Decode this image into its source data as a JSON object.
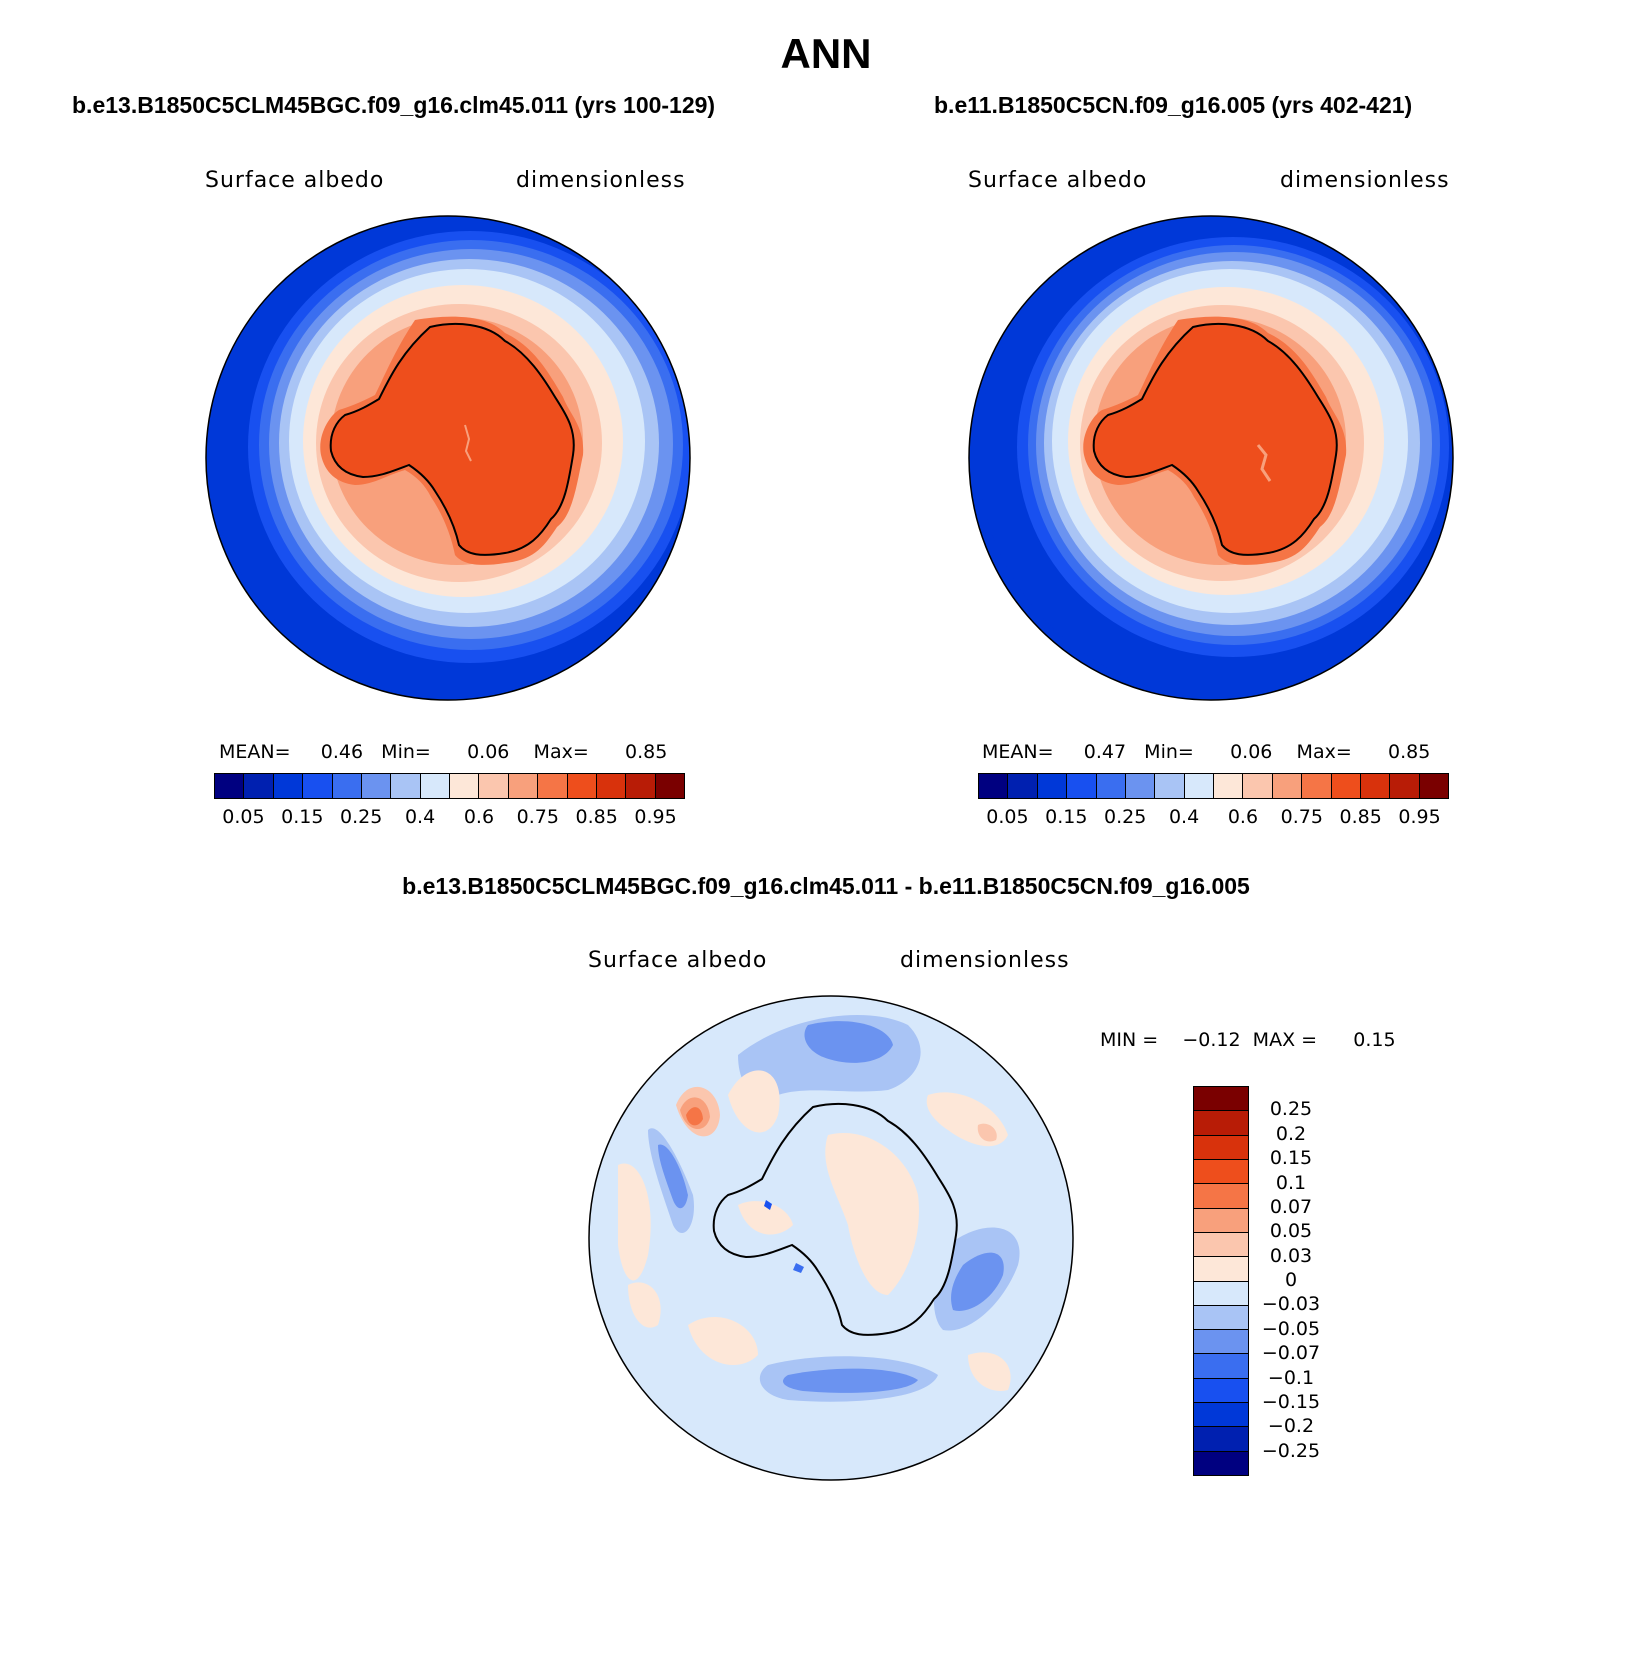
{
  "title": "ANN",
  "panels": [
    {
      "id": "left",
      "title": "b.e13.B1850C5CLM45BGC.f09_g16.clm45.011 (yrs 100-129)",
      "variable": "Surface albedo",
      "units": "dimensionless",
      "stats": {
        "mean_label": "MEAN=",
        "mean": "0.46",
        "min_label": "Min=",
        "min": "0.06",
        "max_label": "Max=",
        "max": "0.85"
      },
      "colorbar": {
        "colors": [
          "#000080",
          "#0020b0",
          "#0038d8",
          "#1850f0",
          "#3a6ef0",
          "#6b93f0",
          "#a9c4f5",
          "#d7e8fb",
          "#fde7d8",
          "#fbc6ae",
          "#f8a07c",
          "#f57546",
          "#ee4e1c",
          "#d8320c",
          "#b81c06",
          "#7a0000"
        ],
        "tick_labels": [
          "0.05",
          "0.15",
          "0.25",
          "0.4",
          "0.6",
          "0.75",
          "0.85",
          "0.95"
        ]
      }
    },
    {
      "id": "right",
      "title": "b.e11.B1850C5CN.f09_g16.005 (yrs 402-421)",
      "variable": "Surface albedo",
      "units": "dimensionless",
      "stats": {
        "mean_label": "MEAN=",
        "mean": "0.47",
        "min_label": "Min=",
        "min": "0.06",
        "max_label": "Max=",
        "max": "0.85"
      },
      "colorbar": {
        "colors": [
          "#000080",
          "#0020b0",
          "#0038d8",
          "#1850f0",
          "#3a6ef0",
          "#6b93f0",
          "#a9c4f5",
          "#d7e8fb",
          "#fde7d8",
          "#fbc6ae",
          "#f8a07c",
          "#f57546",
          "#ee4e1c",
          "#d8320c",
          "#b81c06",
          "#7a0000"
        ],
        "tick_labels": [
          "0.05",
          "0.15",
          "0.25",
          "0.4",
          "0.6",
          "0.75",
          "0.85",
          "0.95"
        ]
      }
    },
    {
      "id": "diff",
      "title": "b.e13.B1850C5CLM45BGC.f09_g16.clm45.011 - b.e11.B1850C5CN.f09_g16.005",
      "variable": "Surface albedo",
      "units": "dimensionless",
      "stats": {
        "min_label": "MIN =",
        "min": "−0.12",
        "max_label": "MAX =",
        "max": "0.15"
      },
      "colorbar": {
        "colors": [
          "#7a0000",
          "#b81c06",
          "#d8320c",
          "#ee4e1c",
          "#f57546",
          "#f8a07c",
          "#fbc6ae",
          "#fde7d8",
          "#d7e8fb",
          "#a9c4f5",
          "#6b93f0",
          "#3a6ef0",
          "#1850f0",
          "#0038d8",
          "#0020b0",
          "#000080"
        ],
        "tick_labels": [
          "0.25",
          "0.2",
          "0.15",
          "0.1",
          "0.07",
          "0.05",
          "0.03",
          "0",
          "−0.03",
          "−0.05",
          "−0.07",
          "−0.1",
          "−0.15",
          "−0.2",
          "−0.25"
        ]
      }
    }
  ]
}
